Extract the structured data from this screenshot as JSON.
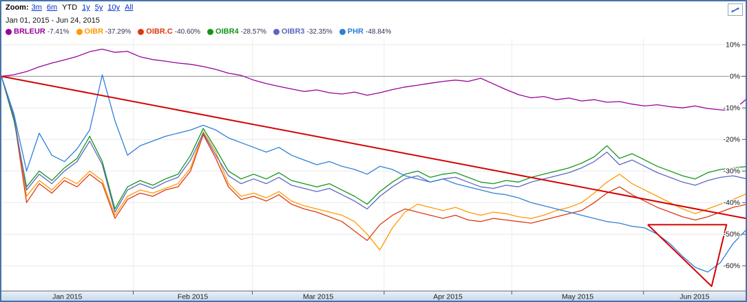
{
  "header": {
    "zoom_label": "Zoom:",
    "zoom_options": [
      {
        "label": "3m",
        "active": false
      },
      {
        "label": "6m",
        "active": false
      },
      {
        "label": "YTD",
        "active": true
      },
      {
        "label": "1y",
        "active": false
      },
      {
        "label": "5y",
        "active": false
      },
      {
        "label": "10y",
        "active": false
      },
      {
        "label": "All",
        "active": false
      }
    ],
    "date_range": "Jan 01, 2015  -  Jun 24, 2015"
  },
  "chart_data": {
    "type": "line",
    "unit": "percent-change-since-start",
    "x_total_days": 175,
    "x_months": [
      {
        "label": "Jan 2015",
        "start": 0,
        "end": 31
      },
      {
        "label": "Feb 2015",
        "start": 31,
        "end": 59
      },
      {
        "label": "Mar 2015",
        "start": 59,
        "end": 90
      },
      {
        "label": "Apr 2015",
        "start": 90,
        "end": 120
      },
      {
        "label": "May 2015",
        "start": 120,
        "end": 151
      },
      {
        "label": "Jun 2015",
        "start": 151,
        "end": 175
      }
    ],
    "y_ticks": [
      10,
      0,
      -10,
      -20,
      -30,
      -40,
      -50,
      -60
    ],
    "y_tick_suffix": "%",
    "ylim": [
      -68,
      12
    ],
    "zero_line": 0,
    "grid_color": "#e8e8e8",
    "zero_line_color": "#8a8a8a",
    "series": [
      {
        "name": "BRLEUR",
        "change": "-7.41%",
        "color": "#990099",
        "values": [
          0,
          0.5,
          1.5,
          3,
          4.2,
          5.2,
          6.3,
          7.8,
          8.6,
          7.6,
          7.9,
          6.2,
          5.3,
          4.8,
          4.2,
          3.8,
          3.1,
          2.2,
          1.0,
          0.3,
          -1.2,
          -2.3,
          -3.2,
          -4.0,
          -4.8,
          -4.3,
          -5.2,
          -5.6,
          -5.0,
          -6.0,
          -5.2,
          -4.2,
          -3.4,
          -2.8,
          -2.2,
          -1.6,
          -1.2,
          -1.6,
          -0.6,
          -2.4,
          -4.2,
          -5.8,
          -6.8,
          -6.4,
          -7.4,
          -6.9,
          -7.8,
          -7.4,
          -8.2,
          -8.0,
          -8.8,
          -9.4,
          -9.0,
          -9.6,
          -10.0,
          -9.4,
          -10.2,
          -10.6,
          -10.9,
          -7.4
        ]
      },
      {
        "name": "OIBR",
        "change": "-37.29%",
        "color": "#FF9900",
        "values": [
          0,
          -12,
          -38,
          -33,
          -36,
          -32,
          -34,
          -30,
          -33,
          -44,
          -38,
          -36,
          -37,
          -35.5,
          -34,
          -29,
          -17.5,
          -24,
          -34,
          -38,
          -37,
          -38.5,
          -36.5,
          -39.5,
          -41,
          -42,
          -43,
          -44,
          -46,
          -50,
          -55,
          -48,
          -43,
          -40.5,
          -41.5,
          -42.5,
          -41.5,
          -43,
          -44,
          -43,
          -43.5,
          -44.5,
          -45,
          -44,
          -42.5,
          -41.5,
          -40,
          -37,
          -33.5,
          -31,
          -34,
          -36,
          -38,
          -40,
          -42,
          -43.5,
          -42,
          -40.5,
          -39,
          -37.3
        ]
      },
      {
        "name": "OIBR.C",
        "change": "-40.60%",
        "color": "#DC3912",
        "values": [
          0,
          -13,
          -40,
          -34,
          -37,
          -33,
          -35,
          -31,
          -34,
          -45,
          -39,
          -37,
          -38,
          -36,
          -35,
          -30,
          -18.5,
          -26,
          -35,
          -39,
          -38,
          -39.5,
          -37.5,
          -40.5,
          -42,
          -43,
          -44.5,
          -46,
          -49,
          -52,
          -47,
          -44,
          -42,
          -43,
          -44,
          -45,
          -44,
          -45.5,
          -46,
          -45,
          -45.5,
          -46,
          -46.5,
          -45.5,
          -44.5,
          -43.5,
          -42.5,
          -40,
          -37,
          -35,
          -37.5,
          -39.5,
          -41.5,
          -43,
          -44.5,
          -45.5,
          -44.5,
          -43,
          -41.5,
          -40.6
        ]
      },
      {
        "name": "OIBR4",
        "change": "-28.57%",
        "color": "#109618",
        "values": [
          0,
          -14,
          -35,
          -30,
          -33,
          -29,
          -26,
          -19,
          -27,
          -42,
          -35,
          -33,
          -34.5,
          -32.5,
          -31,
          -25,
          -16.5,
          -23,
          -30,
          -32.5,
          -31,
          -32.5,
          -30.5,
          -33,
          -34,
          -35,
          -34,
          -36,
          -38,
          -40.5,
          -36.5,
          -33.5,
          -31,
          -30,
          -32,
          -31,
          -30.5,
          -32,
          -33.5,
          -34,
          -33,
          -33.5,
          -32,
          -31,
          -30,
          -29,
          -27.5,
          -25.5,
          -22,
          -26,
          -24.5,
          -26.5,
          -28.5,
          -30,
          -31.5,
          -32.5,
          -30.5,
          -29.5,
          -29,
          -28.6
        ]
      },
      {
        "name": "OIBR3",
        "change": "-32.35%",
        "color": "#5C66C4",
        "values": [
          0,
          -13,
          -36,
          -31,
          -34,
          -30,
          -27,
          -20.5,
          -28,
          -43,
          -36,
          -34,
          -35.5,
          -33.5,
          -32,
          -26.5,
          -18,
          -25,
          -31.5,
          -34,
          -32.5,
          -34,
          -32,
          -34.5,
          -35.5,
          -36.5,
          -35.5,
          -37.5,
          -39.5,
          -42,
          -38,
          -35,
          -32.5,
          -31.5,
          -33.5,
          -32.5,
          -32,
          -33.5,
          -35,
          -35.5,
          -34.5,
          -35,
          -33.5,
          -32.5,
          -31.5,
          -30.5,
          -29,
          -27,
          -24,
          -28,
          -26.5,
          -28.5,
          -30.5,
          -32,
          -33.5,
          -34.5,
          -33,
          -32,
          -31.5,
          -32.4
        ]
      },
      {
        "name": "PHR",
        "change": "-48.84%",
        "color": "#2F7ED8",
        "values": [
          0,
          -12,
          -30,
          -18,
          -25,
          -27,
          -23,
          -17,
          0.5,
          -14,
          -25,
          -22,
          -20.5,
          -19,
          -18,
          -17,
          -15.5,
          -17,
          -19.5,
          -21,
          -22.5,
          -24,
          -22.5,
          -25,
          -26.5,
          -28,
          -27,
          -28.5,
          -29.5,
          -31,
          -28.5,
          -29.5,
          -31.5,
          -32.5,
          -33.5,
          -32.5,
          -34,
          -35,
          -36,
          -37,
          -37.5,
          -38.5,
          -40,
          -41,
          -42,
          -43,
          -44,
          -45,
          -46,
          -46.5,
          -47.5,
          -48,
          -50,
          -53,
          -57,
          -60.5,
          -62,
          -59,
          -53,
          -48.8
        ]
      }
    ],
    "annotations": {
      "color": "#D40000",
      "trendline": [
        [
          0,
          0
        ],
        [
          175,
          -45
        ]
      ],
      "triangle": [
        [
          152,
          -47
        ],
        [
          167,
          -66.5
        ],
        [
          170.5,
          -47
        ],
        [
          152,
          -47
        ]
      ]
    }
  }
}
